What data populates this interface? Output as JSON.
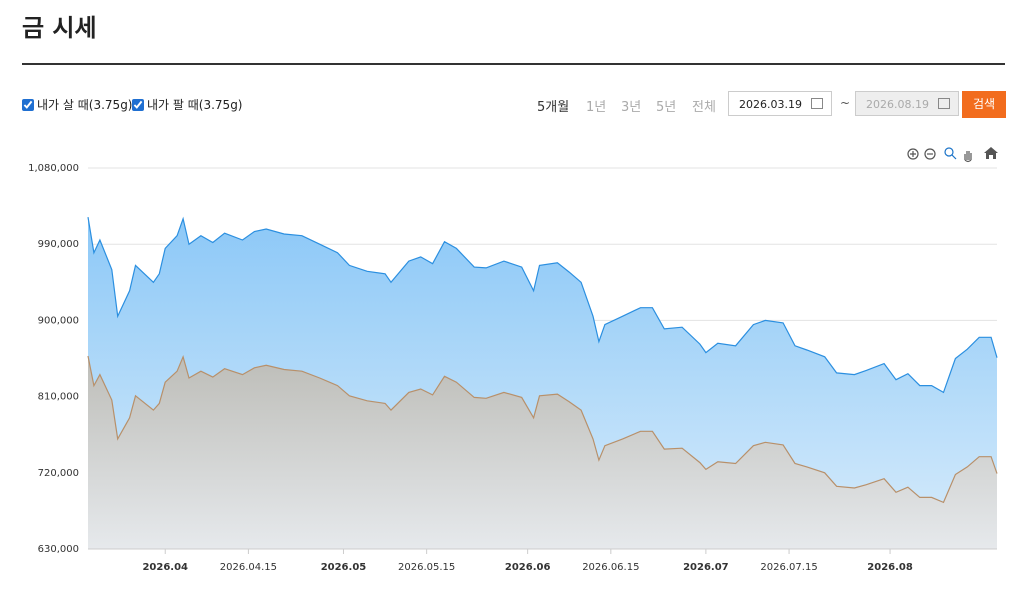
{
  "header": {
    "title": "금 시세"
  },
  "controls": {
    "periods": [
      "5개월",
      "1년",
      "3년",
      "5년",
      "전체"
    ],
    "start_date": "2026.03.19",
    "separator": "~",
    "end_date": "2026.08.19",
    "search": "검색"
  },
  "chart_data": {
    "type": "area",
    "x": [
      "2026.03.19",
      "2026.03.20",
      "2026.03.21",
      "2026.03.23",
      "2026.03.24",
      "2026.03.26",
      "2026.03.27",
      "2026.03.30",
      "2026.03.31",
      "2026.04.01",
      "2026.04.03",
      "2026.04.04",
      "2026.04.05",
      "2026.04.07",
      "2026.04.09",
      "2026.04.11",
      "2026.04.14",
      "2026.04.16",
      "2026.04.18",
      "2026.04.21",
      "2026.04.24",
      "2026.04.27",
      "2026.04.30",
      "2026.05.02",
      "2026.05.05",
      "2026.05.08",
      "2026.05.09",
      "2026.05.12",
      "2026.05.14",
      "2026.05.16",
      "2026.05.18",
      "2026.05.20",
      "2026.05.23",
      "2026.05.25",
      "2026.05.28",
      "2026.05.31",
      "2026.06.02",
      "2026.06.03",
      "2026.06.06",
      "2026.06.08",
      "2026.06.10",
      "2026.06.12",
      "2026.06.13",
      "2026.06.14",
      "2026.06.17",
      "2026.06.20",
      "2026.06.22",
      "2026.06.24",
      "2026.06.27",
      "2026.06.30",
      "2026.07.01",
      "2026.07.03",
      "2026.07.06",
      "2026.07.09",
      "2026.07.11",
      "2026.07.14",
      "2026.07.16",
      "2026.07.18",
      "2026.07.21",
      "2026.07.23",
      "2026.07.26",
      "2026.07.28",
      "2026.07.31",
      "2026.08.02",
      "2026.08.04",
      "2026.08.06",
      "2026.08.08",
      "2026.08.10",
      "2026.08.12",
      "2026.08.14",
      "2026.08.16",
      "2026.08.18",
      "2026.08.19"
    ],
    "series": [
      {
        "name": "내가 살 때(3.75g)",
        "color": "#2b8fe0",
        "values": [
          1022000,
          980000,
          995000,
          960000,
          905000,
          935000,
          965000,
          945000,
          955000,
          985000,
          1000000,
          1020000,
          990000,
          1000000,
          992000,
          1003000,
          995000,
          1005000,
          1008000,
          1002000,
          1000000,
          990000,
          980000,
          965000,
          958000,
          955000,
          945000,
          970000,
          975000,
          967000,
          993000,
          985000,
          963000,
          962000,
          970000,
          963000,
          935000,
          965000,
          968000,
          957000,
          945000,
          905000,
          875000,
          895000,
          905000,
          915000,
          915000,
          890000,
          892000,
          872000,
          862000,
          873000,
          870000,
          895000,
          900000,
          897000,
          870000,
          865000,
          857000,
          838000,
          836000,
          841000,
          849000,
          830000,
          837000,
          823000,
          823000,
          815000,
          855000,
          866000,
          880000,
          880000,
          856000
        ]
      },
      {
        "name": "내가 팔 때(3.75g)",
        "color": "#b8906a",
        "values": [
          858000,
          823000,
          836000,
          806000,
          760000,
          785000,
          811000,
          794000,
          802000,
          827000,
          840000,
          857000,
          832000,
          840000,
          833000,
          843000,
          836000,
          844000,
          847000,
          842000,
          840000,
          832000,
          823000,
          811000,
          805000,
          802000,
          794000,
          815000,
          819000,
          812000,
          834000,
          827000,
          809000,
          808000,
          815000,
          809000,
          785000,
          811000,
          813000,
          804000,
          794000,
          760000,
          735000,
          752000,
          760000,
          769000,
          769000,
          748000,
          749000,
          732000,
          724000,
          733000,
          731000,
          752000,
          756000,
          753000,
          731000,
          727000,
          720000,
          704000,
          702000,
          706000,
          713000,
          697000,
          703000,
          691000,
          691000,
          685000,
          718000,
          727000,
          739000,
          739000,
          719000
        ]
      }
    ],
    "xlim": [
      "2026.03.19",
      "2026.08.19"
    ],
    "xticks": [
      {
        "value": "2026.04.01",
        "label": "2026.04"
      },
      {
        "value": "2026.04.15",
        "label": "2026.04.15"
      },
      {
        "value": "2026.05.01",
        "label": "2026.05"
      },
      {
        "value": "2026.05.15",
        "label": "2026.05.15"
      },
      {
        "value": "2026.06.01",
        "label": "2026.06"
      },
      {
        "value": "2026.06.15",
        "label": "2026.06.15"
      },
      {
        "value": "2026.07.01",
        "label": "2026.07"
      },
      {
        "value": "2026.07.15",
        "label": "2026.07.15"
      },
      {
        "value": "2026.08.01",
        "label": "2026.08"
      }
    ],
    "ylim": [
      630000,
      1080000
    ],
    "yticks": [
      {
        "value": 630000,
        "label": "630,000"
      },
      {
        "value": 720000,
        "label": "720,000"
      },
      {
        "value": 810000,
        "label": "810,000"
      },
      {
        "value": 900000,
        "label": "900,000"
      },
      {
        "value": 990000,
        "label": "990,000"
      },
      {
        "value": 1080000,
        "label": "1,080,000"
      }
    ],
    "grid": true
  }
}
